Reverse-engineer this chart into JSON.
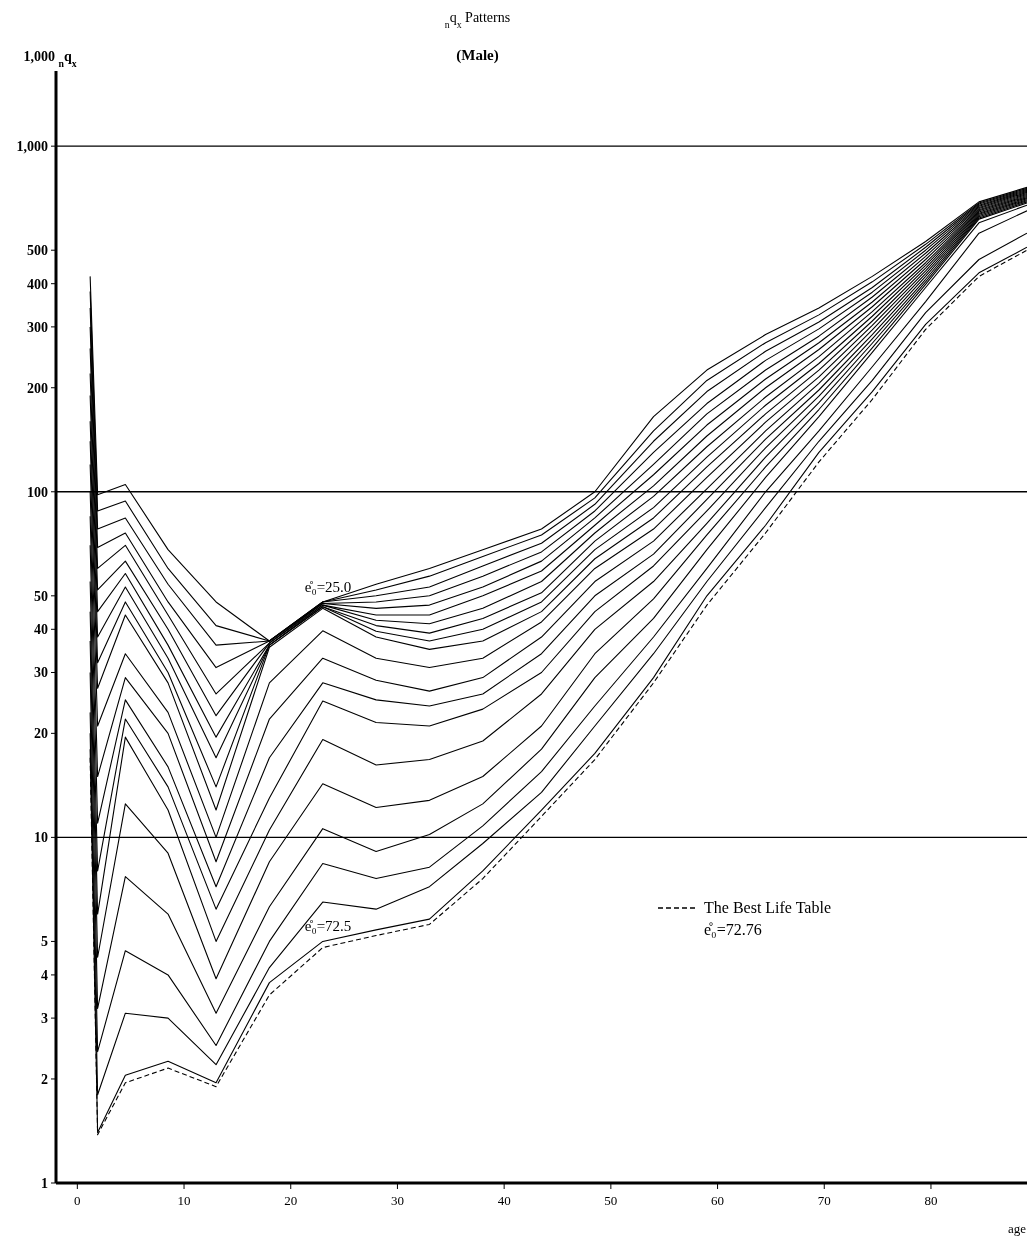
{
  "chart_data": {
    "type": "line",
    "title": "$_{n}$q$_{x}$ Patterns",
    "subtitle": "(Male)",
    "xlabel": "age",
    "ylabel": "1,000 $_{n}$q$_{x}$",
    "log": "y",
    "xlim": [
      -2,
      89
    ],
    "ylim": [
      1,
      1650
    ],
    "xticks": [
      0,
      10,
      20,
      30,
      40,
      50,
      60,
      70,
      80
    ],
    "yticks": [
      1,
      2,
      3,
      4,
      5,
      10,
      20,
      30,
      40,
      50,
      100,
      200,
      300,
      400,
      500,
      {
        "value": 1000,
        "label": "1,000"
      }
    ],
    "grid": false,
    "legend": "bottom right",
    "marker": "none",
    "line_style": "solid",
    "x": [
      1.2,
      1.9,
      4.5,
      8.5,
      13,
      18,
      23,
      28,
      33,
      38,
      43.5,
      48.5,
      54,
      59,
      64.5,
      69.5,
      74.5,
      79.5,
      84.5,
      89
    ],
    "ref_lines": [
      {
        "axis": "y",
        "value": 10,
        "color": "#000000"
      },
      {
        "axis": "y",
        "value": 100,
        "color": "#000000"
      },
      {
        "axis": "y",
        "value": 1000,
        "color": "#000000"
      }
    ],
    "annotations": [
      {
        "text": "e̊₀=25.0",
        "x": 23,
        "y": 48
      },
      {
        "text": "e̊₀=72.5",
        "x": 23,
        "y": 5
      },
      "e̊₀=72.76"
    ],
    "series": [
      {
        "color": "#000000",
        "values": [
          420,
          98,
          105,
          68,
          48,
          37,
          48,
          54,
          60,
          68,
          78,
          100,
          165,
          225,
          285,
          340,
          420,
          530,
          690,
          760
        ]
      },
      {
        "color": "#000000",
        "values": [
          380,
          88,
          94,
          60,
          41,
          37,
          48,
          52,
          57,
          65,
          75,
          96,
          150,
          210,
          270,
          325,
          405,
          520,
          685,
          755
        ]
      },
      {
        "color": "#000000",
        "values": [
          340,
          78,
          84,
          54,
          36,
          37,
          48,
          50,
          53,
          61,
          71,
          92,
          140,
          195,
          255,
          310,
          390,
          510,
          680,
          750
        ]
      },
      {
        "color": "#000000",
        "values": [
          300,
          69,
          76,
          48,
          31,
          37,
          47.5,
          48,
          50,
          57,
          67,
          88,
          130,
          180,
          240,
          296,
          378,
          500,
          675,
          745
        ]
      },
      {
        "color": "#000000",
        "values": [
          260,
          60,
          70,
          44,
          26,
          36.5,
          47.5,
          46,
          47,
          53,
          63,
          84,
          120,
          168,
          225,
          282,
          366,
          490,
          670,
          740
        ]
      },
      {
        "color": "#000000",
        "values": [
          220,
          52,
          63,
          40,
          22.5,
          36.5,
          47,
          44,
          44,
          50,
          59,
          80,
          112,
          156,
          212,
          270,
          354,
          480,
          665,
          735
        ]
      },
      {
        "color": "#000000",
        "values": [
          190,
          45,
          58,
          36,
          19.5,
          36,
          47,
          42.5,
          41.5,
          46,
          55,
          76,
          104,
          145,
          200,
          258,
          343,
          470,
          660,
          730
        ]
      },
      {
        "color": "#000000",
        "values": [
          160,
          38,
          53,
          33,
          17,
          36,
          46.5,
          41,
          39,
          43,
          51,
          72,
          97,
          135,
          188,
          246,
          332,
          460,
          655,
          725
        ]
      },
      {
        "color": "#000000",
        "values": [
          140,
          32,
          48,
          30,
          14,
          36,
          46.5,
          39.5,
          37,
          40,
          48,
          68,
          90,
          126,
          178,
          235,
          322,
          452,
          650,
          720
        ]
      },
      {
        "color": "#000000",
        "values": [
          120,
          27,
          44,
          28,
          12,
          35.5,
          46,
          38,
          35,
          37,
          45,
          64,
          84,
          118,
          168,
          225,
          312,
          444,
          645,
          715
        ]
      },
      {
        "color": "#000000",
        "values": [
          100,
          21,
          34,
          23,
          10,
          28,
          39.6,
          33,
          31,
          33,
          42,
          60,
          78,
          110,
          159,
          215,
          303,
          436,
          640,
          710
        ]
      },
      {
        "color": "#000000",
        "values": [
          85,
          15,
          29,
          20,
          8.5,
          22,
          33,
          28.5,
          26.5,
          29,
          38,
          55,
          72,
          102,
          150,
          206,
          294,
          428,
          635,
          705
        ]
      },
      {
        "color": "#000000",
        "values": [
          70,
          11,
          25,
          16,
          7.2,
          17,
          28,
          25,
          24,
          26,
          34,
          50,
          66,
          95,
          142,
          197,
          285,
          420,
          630,
          700
        ]
      },
      {
        "color": "#000000",
        "values": [
          55,
          8,
          22,
          14,
          6.2,
          13,
          24.8,
          21.5,
          21,
          23.5,
          30,
          45,
          61,
          88,
          134,
          189,
          277,
          412,
          625,
          695
        ]
      },
      {
        "color": "#000000",
        "values": [
          45,
          6,
          19.5,
          12,
          5,
          10.5,
          19.2,
          16.2,
          16.8,
          19,
          26,
          40,
          55,
          81,
          126,
          181,
          269,
          405,
          620,
          690
        ]
      },
      {
        "color": "#000000",
        "values": [
          37,
          4.5,
          12.5,
          9,
          3.9,
          8.5,
          14.3,
          12.2,
          12.8,
          15,
          21,
          34,
          49,
          75,
          118,
          173,
          261,
          398,
          615,
          685
        ]
      },
      {
        "color": "#000000",
        "values": [
          30,
          3.2,
          7.7,
          6,
          3.1,
          6.3,
          10.6,
          9.1,
          10.2,
          12.5,
          18,
          29,
          43,
          68,
          110,
          165,
          253,
          390,
          600,
          675
        ]
      },
      {
        "color": "#000000",
        "values": [
          23,
          2.4,
          4.7,
          4,
          2.5,
          5,
          8.4,
          7.6,
          8.2,
          10.8,
          15.5,
          24,
          38,
          60,
          100,
          150,
          230,
          355,
          560,
          650
        ]
      },
      {
        "color": "#000000",
        "values": [
          20,
          1.8,
          3.1,
          3,
          2.2,
          4.2,
          6.5,
          6.2,
          7.2,
          9.6,
          13.5,
          21,
          34,
          55,
          90,
          140,
          210,
          330,
          470,
          560
        ]
      },
      {
        "color": "#000000",
        "values": [
          18,
          1.4,
          2.05,
          2.25,
          1.95,
          3.8,
          5,
          5.4,
          5.8,
          8,
          12,
          17.5,
          29,
          50,
          80,
          130,
          195,
          305,
          430,
          510
        ]
      },
      {
        "name": "The Best Life Table",
        "color": "#000000",
        "line_style": "dashed",
        "values": [
          17,
          1.38,
          1.95,
          2.15,
          1.9,
          3.5,
          4.8,
          5.2,
          5.6,
          7.6,
          11.5,
          16.8,
          28,
          47,
          76,
          122,
          185,
          295,
          420,
          500
        ]
      }
    ]
  }
}
